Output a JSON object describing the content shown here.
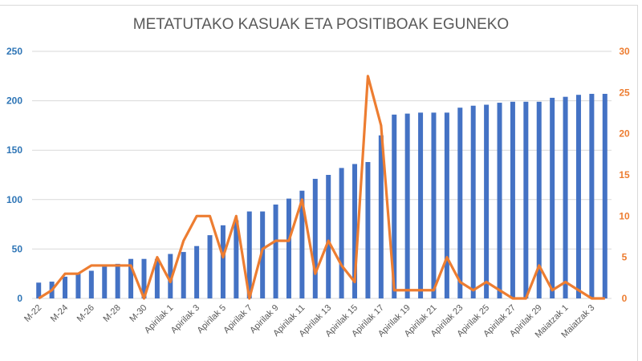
{
  "chart_data": {
    "type": "bar+line",
    "title": "METATUTAKO KASUAK ETA POSITIBOAK EGUNEKO",
    "xlabel": "",
    "ylabel_left": "",
    "ylabel_right": "",
    "ylim_left": [
      0,
      250
    ],
    "ylim_right": [
      0,
      30
    ],
    "yticks_left": [
      0,
      50,
      100,
      150,
      200,
      250
    ],
    "yticks_right": [
      0,
      5,
      10,
      15,
      20,
      25,
      30
    ],
    "grid": true,
    "legend": "none",
    "colors": {
      "bars": "#4472c4",
      "line": "#ed7d31",
      "left_axis": "#2e75b6",
      "right_axis": "#ed7d31"
    },
    "categories": [
      "M-22",
      "M-23",
      "M-24",
      "M-25",
      "M-26",
      "M-27",
      "M-28",
      "M-29",
      "M-30",
      "M-31",
      "Apirilak 1",
      "Apirilak 2",
      "Apirilak 3",
      "Apirilak 4",
      "Apirilak 5",
      "Apirilak 6",
      "Apirilak 7",
      "Apirilak 8",
      "Apirilak 9",
      "Apirilak 10",
      "Apirilak 11",
      "Apirilak 12",
      "Apirilak 13",
      "Apirilak 14",
      "Apirilak 15",
      "Apirilak 16",
      "Apirilak 17",
      "Apirilak 18",
      "Apirilak 19",
      "Apirilak 20",
      "Apirilak 21",
      "Apirilak 22",
      "Apirilak 23",
      "Apirilak 24",
      "Apirilak 25",
      "Apirilak 26",
      "Apirilak 27",
      "Apirilak 28",
      "Apirilak 29",
      "Apirilak 30",
      "Maiatzak 1",
      "Maiatzak 2",
      "Maiatzak 3",
      "Maiatzak 4"
    ],
    "x_tick_labels": [
      "M-22",
      "M-24",
      "M-26",
      "M-28",
      "M-30",
      "Apirilak 1",
      "Apirilak 3",
      "Apirilak 5",
      "Apirilak 7",
      "Apirilak 9",
      "Apirilak 11",
      "Apirilak 13",
      "Apirilak 15",
      "Apirilak 17",
      "Apirilak 19",
      "Apirilak 21",
      "Apirilak 23",
      "Apirilak 25",
      "Apirilak 27",
      "Apirilak 29",
      "Maiatzak 1",
      "Maiatzak 3"
    ],
    "series": [
      {
        "name": "Metatutako kasuak",
        "type": "bar",
        "axis": "left",
        "values": [
          16,
          17,
          22,
          26,
          28,
          33,
          35,
          40,
          40,
          40,
          45,
          47,
          53,
          64,
          74,
          79,
          88,
          88,
          95,
          101,
          109,
          121,
          125,
          132,
          136,
          138,
          165,
          186,
          187,
          188,
          188,
          188,
          193,
          195,
          196,
          198,
          199,
          199,
          199,
          203,
          204,
          206,
          207,
          207
        ]
      },
      {
        "name": "Positiboak eguneko",
        "type": "line",
        "axis": "right",
        "values": [
          0,
          1,
          3,
          3,
          4,
          4,
          4,
          4,
          0,
          5,
          2,
          7,
          10,
          10,
          5,
          10,
          0,
          6,
          7,
          7,
          12,
          3,
          7,
          4,
          2,
          27,
          21,
          1,
          1,
          1,
          1,
          5,
          2,
          1,
          2,
          1,
          0,
          0,
          4,
          1,
          2,
          1,
          0,
          0
        ]
      }
    ]
  }
}
